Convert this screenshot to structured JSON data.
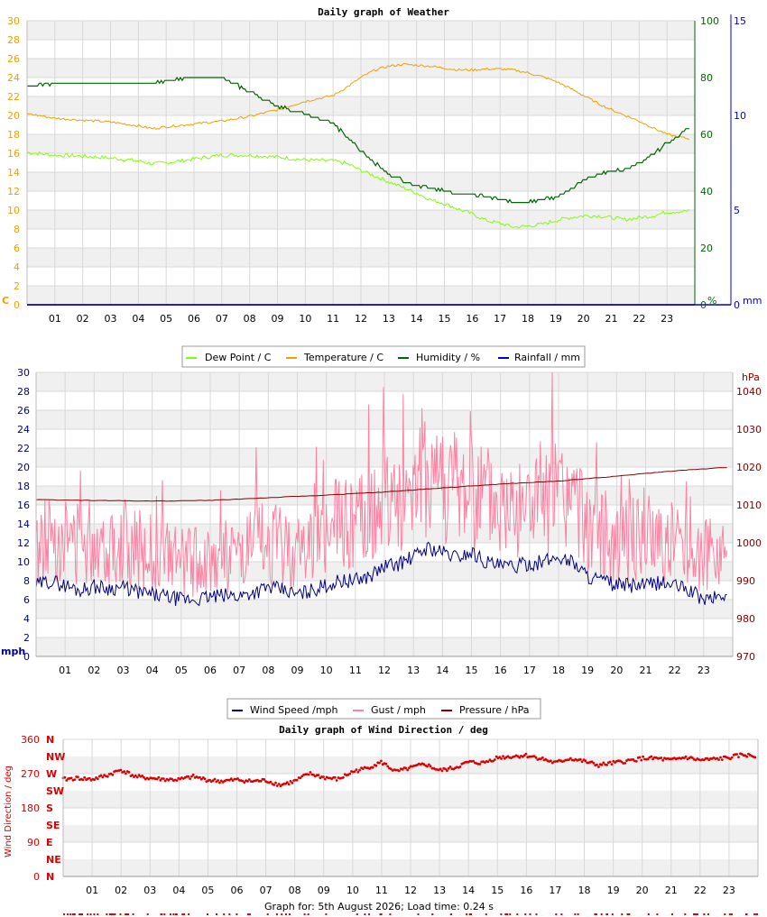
{
  "colors": {
    "dew": "#80ff00",
    "temp": "#f0a000",
    "humidity": "#006600",
    "rain": "#0000cc",
    "wind": "#000080",
    "gust": "#ff80a0",
    "pressure": "#800000",
    "direction": "#dd0000",
    "band": "#f0f0f0",
    "grid": "#d8d8d8"
  },
  "hours": [
    "01",
    "02",
    "03",
    "04",
    "05",
    "06",
    "07",
    "08",
    "09",
    "10",
    "11",
    "12",
    "13",
    "14",
    "15",
    "16",
    "17",
    "18",
    "19",
    "20",
    "21",
    "22",
    "23"
  ],
  "weather": {
    "title": "Daily graph of Weather",
    "left_unit": "C",
    "hum_unit": "%",
    "rain_unit": "mm",
    "legend": [
      {
        "label": "Dew Point / C",
        "color_key": "dew"
      },
      {
        "label": "Temperature / C",
        "color_key": "temp"
      },
      {
        "label": "Humidity / %",
        "color_key": "humidity"
      },
      {
        "label": "Rainfall / mm",
        "color_key": "rain"
      }
    ]
  },
  "wind": {
    "left_unit": "mph",
    "right_unit": "hPa",
    "legend": [
      {
        "label": "Wind Speed /mph",
        "color_key": "wind"
      },
      {
        "label": "Gust / mph",
        "color_key": "gust"
      },
      {
        "label": "Pressure / hPa",
        "color_key": "pressure"
      }
    ]
  },
  "direction": {
    "title": "Daily graph of Wind Direction / deg",
    "ylabel": "Wind Direction / deg",
    "compass": [
      "N",
      "NW",
      "W",
      "SW",
      "S",
      "SE",
      "E",
      "NE",
      "N"
    ]
  },
  "footer": "Graph for: 5th August 2026; Load time: 0.24 s",
  "chart_data": [
    {
      "type": "line",
      "title": "Daily graph of Weather",
      "x_unit": "hour",
      "xlim": [
        0,
        24
      ],
      "axes": {
        "temperature": {
          "ylim": [
            0,
            30
          ],
          "ticks": [
            0,
            2,
            4,
            6,
            8,
            10,
            12,
            14,
            16,
            18,
            20,
            22,
            24,
            26,
            28,
            30
          ]
        },
        "humidity": {
          "ylim": [
            0,
            100
          ],
          "ticks": [
            0,
            20,
            40,
            60,
            80,
            100
          ]
        },
        "rainfall": {
          "ylim": [
            0,
            15
          ],
          "ticks": [
            0,
            5,
            10,
            15
          ]
        }
      },
      "series": [
        {
          "name": "Dew Point / C",
          "x": [
            0,
            1,
            2,
            3,
            4,
            4.5,
            5,
            6,
            7,
            8,
            9,
            10,
            11,
            11.5,
            12,
            12.5,
            13,
            13.5,
            14,
            14.5,
            15,
            15.5,
            16,
            16.5,
            17,
            17.5,
            18,
            18.5,
            19,
            19.5,
            20,
            20.5,
            21,
            21.5,
            22,
            22.5,
            23,
            23.8
          ],
          "y": [
            16.1,
            15.8,
            15.7,
            15.5,
            15.2,
            14.9,
            15,
            15.4,
            15.8,
            15.8,
            15.6,
            15.3,
            15.2,
            14.9,
            14.2,
            13.6,
            13,
            12.4,
            11.8,
            11.1,
            10.7,
            10.1,
            9.6,
            8.9,
            8.6,
            8.2,
            8.3,
            8.5,
            8.9,
            9.2,
            9.4,
            9.4,
            9.2,
            9,
            9.2,
            9.4,
            9.8,
            9.9
          ]
        },
        {
          "name": "Temperature / C",
          "x": [
            0,
            1,
            2,
            3,
            4,
            4.5,
            5,
            6,
            7,
            8,
            9,
            10,
            11,
            11.5,
            12,
            12.5,
            13,
            13.5,
            14,
            14.5,
            15,
            15.5,
            16,
            16.5,
            17,
            17.5,
            18,
            18.5,
            19,
            19.5,
            20,
            20.5,
            21,
            21.5,
            22,
            22.5,
            23,
            23.8
          ],
          "y": [
            20.2,
            19.7,
            19.5,
            19.3,
            18.9,
            18.6,
            18.8,
            19.1,
            19.4,
            19.9,
            20.6,
            21.5,
            22.1,
            23,
            24,
            24.8,
            25.2,
            25.4,
            25.3,
            25.2,
            25,
            24.8,
            24.8,
            24.9,
            24.9,
            24.8,
            24.5,
            24.1,
            23.6,
            22.9,
            22.1,
            21.3,
            20.6,
            20,
            19.4,
            18.7,
            18,
            17.5
          ]
        },
        {
          "name": "Humidity / %",
          "x": [
            0,
            1,
            2,
            3,
            4,
            4.5,
            5,
            6,
            7,
            8,
            9,
            10,
            11,
            11.5,
            12,
            12.5,
            13,
            13.5,
            14,
            14.5,
            15,
            15.5,
            16,
            16.5,
            17,
            17.5,
            18,
            18.5,
            19,
            19.5,
            20,
            20.5,
            21,
            21.5,
            22,
            22.5,
            23,
            23.8
          ],
          "y": [
            77,
            78,
            78,
            78,
            78,
            78,
            79,
            80,
            80,
            75,
            70,
            67,
            64,
            59,
            54,
            50,
            46,
            44,
            42,
            41,
            40,
            39,
            39,
            38,
            37,
            36,
            36,
            37,
            38,
            40,
            44,
            46,
            47,
            48,
            50,
            53,
            57,
            62
          ]
        },
        {
          "name": "Rainfall / mm",
          "x": [
            0,
            24
          ],
          "y": [
            0,
            0
          ]
        }
      ]
    },
    {
      "type": "line",
      "title": "",
      "x_unit": "hour",
      "xlim": [
        0,
        24
      ],
      "axes": {
        "speed": {
          "ylim": [
            0,
            30
          ],
          "ticks": [
            0,
            2,
            4,
            6,
            8,
            10,
            12,
            14,
            16,
            18,
            20,
            22,
            24,
            26,
            28,
            30
          ]
        },
        "pressure": {
          "ylim": [
            970,
            1045
          ],
          "ticks": [
            970,
            980,
            990,
            1000,
            1010,
            1020,
            1030,
            1040
          ]
        }
      },
      "series": [
        {
          "name": "Wind Speed /mph",
          "x": [
            0,
            0.5,
            1,
            1.5,
            2,
            2.5,
            3,
            3.5,
            4,
            4.5,
            5,
            5.5,
            6,
            6.5,
            7,
            7.5,
            8,
            8.5,
            9,
            9.5,
            10,
            10.5,
            11,
            11.5,
            12,
            12.5,
            13,
            13.5,
            14,
            14.5,
            15,
            15.5,
            16,
            16.5,
            17,
            17.5,
            18,
            18.5,
            19,
            19.5,
            20,
            20.5,
            21,
            21.5,
            22,
            22.5,
            23,
            23.8
          ],
          "y": [
            7.5,
            8,
            7.5,
            7,
            7.4,
            7.2,
            7.3,
            6.8,
            6.5,
            6.3,
            6,
            6,
            6.3,
            6.4,
            6.4,
            6.8,
            7.3,
            7,
            6.5,
            7,
            7.5,
            8,
            8,
            8.5,
            9.5,
            9.8,
            10.5,
            11.5,
            11,
            10.5,
            11,
            10,
            9.5,
            9.5,
            9.8,
            10,
            10.5,
            10,
            8.5,
            8,
            7.5,
            7.5,
            7.5,
            7.8,
            7.5,
            7,
            6,
            6.5
          ]
        },
        {
          "name": "Gust / mph",
          "x": [
            0,
            0.5,
            1,
            1.5,
            2,
            2.5,
            3,
            3.5,
            4,
            4.5,
            5,
            5.5,
            6,
            6.5,
            7,
            7.5,
            8,
            8.5,
            9,
            9.5,
            10,
            10.5,
            11,
            11.5,
            12,
            12.5,
            13,
            13.5,
            14,
            14.5,
            15,
            15.5,
            16,
            16.5,
            17,
            17.5,
            18,
            18.5,
            19,
            19.5,
            20,
            20.5,
            21,
            21.5,
            22,
            22.5,
            23,
            23.8
          ],
          "y": [
            11,
            13,
            12.5,
            12,
            12.5,
            12,
            12,
            11,
            11,
            10.5,
            10,
            10,
            10.5,
            10.5,
            10.5,
            11.5,
            12,
            11.5,
            11,
            12,
            13,
            14,
            14,
            14.5,
            16,
            17,
            18,
            20,
            19,
            17.5,
            17.5,
            16.5,
            15.5,
            15.5,
            16,
            16,
            16.5,
            15.5,
            14,
            13,
            12.5,
            12.5,
            12.5,
            12.5,
            12,
            11.5,
            10.5,
            11
          ]
        },
        {
          "name": "Pressure / hPa",
          "x": [
            0,
            2,
            4,
            6,
            8,
            10,
            12,
            14,
            16,
            18,
            20,
            22,
            23.8
          ],
          "y": [
            1011.4,
            1011.2,
            1011,
            1011.2,
            1011.9,
            1012.6,
            1013.4,
            1014.5,
            1015.5,
            1016.3,
            1017.6,
            1019,
            1019.9
          ]
        }
      ]
    },
    {
      "type": "scatter",
      "title": "Daily graph of Wind Direction / deg",
      "ylabel": "Wind Direction / deg",
      "x_unit": "hour",
      "xlim": [
        0,
        24
      ],
      "ylim": [
        0,
        360
      ],
      "yticks": [
        0,
        90,
        180,
        270,
        360
      ],
      "series": [
        {
          "name": "",
          "x": [
            0,
            0.5,
            1,
            1.5,
            2,
            2.5,
            3,
            3.5,
            4,
            4.5,
            5,
            5.5,
            6,
            6.5,
            7,
            7.5,
            8,
            8.5,
            9,
            9.5,
            10,
            10.5,
            11,
            11.5,
            12,
            12.5,
            13,
            13.5,
            14,
            14.5,
            15,
            15.5,
            16,
            16.5,
            17,
            17.5,
            18,
            18.5,
            19,
            19.5,
            20,
            20.5,
            21,
            21.5,
            22,
            22.5,
            23,
            23.5,
            23.9
          ],
          "y": [
            255,
            258,
            255,
            265,
            280,
            262,
            258,
            255,
            254,
            262,
            253,
            250,
            254,
            250,
            252,
            240,
            250,
            270,
            260,
            255,
            275,
            285,
            300,
            275,
            285,
            295,
            278,
            285,
            300,
            298,
            312,
            315,
            318,
            310,
            298,
            310,
            302,
            292,
            298,
            303,
            310,
            310,
            305,
            313,
            305,
            308,
            312,
            320,
            315
          ]
        }
      ]
    }
  ]
}
